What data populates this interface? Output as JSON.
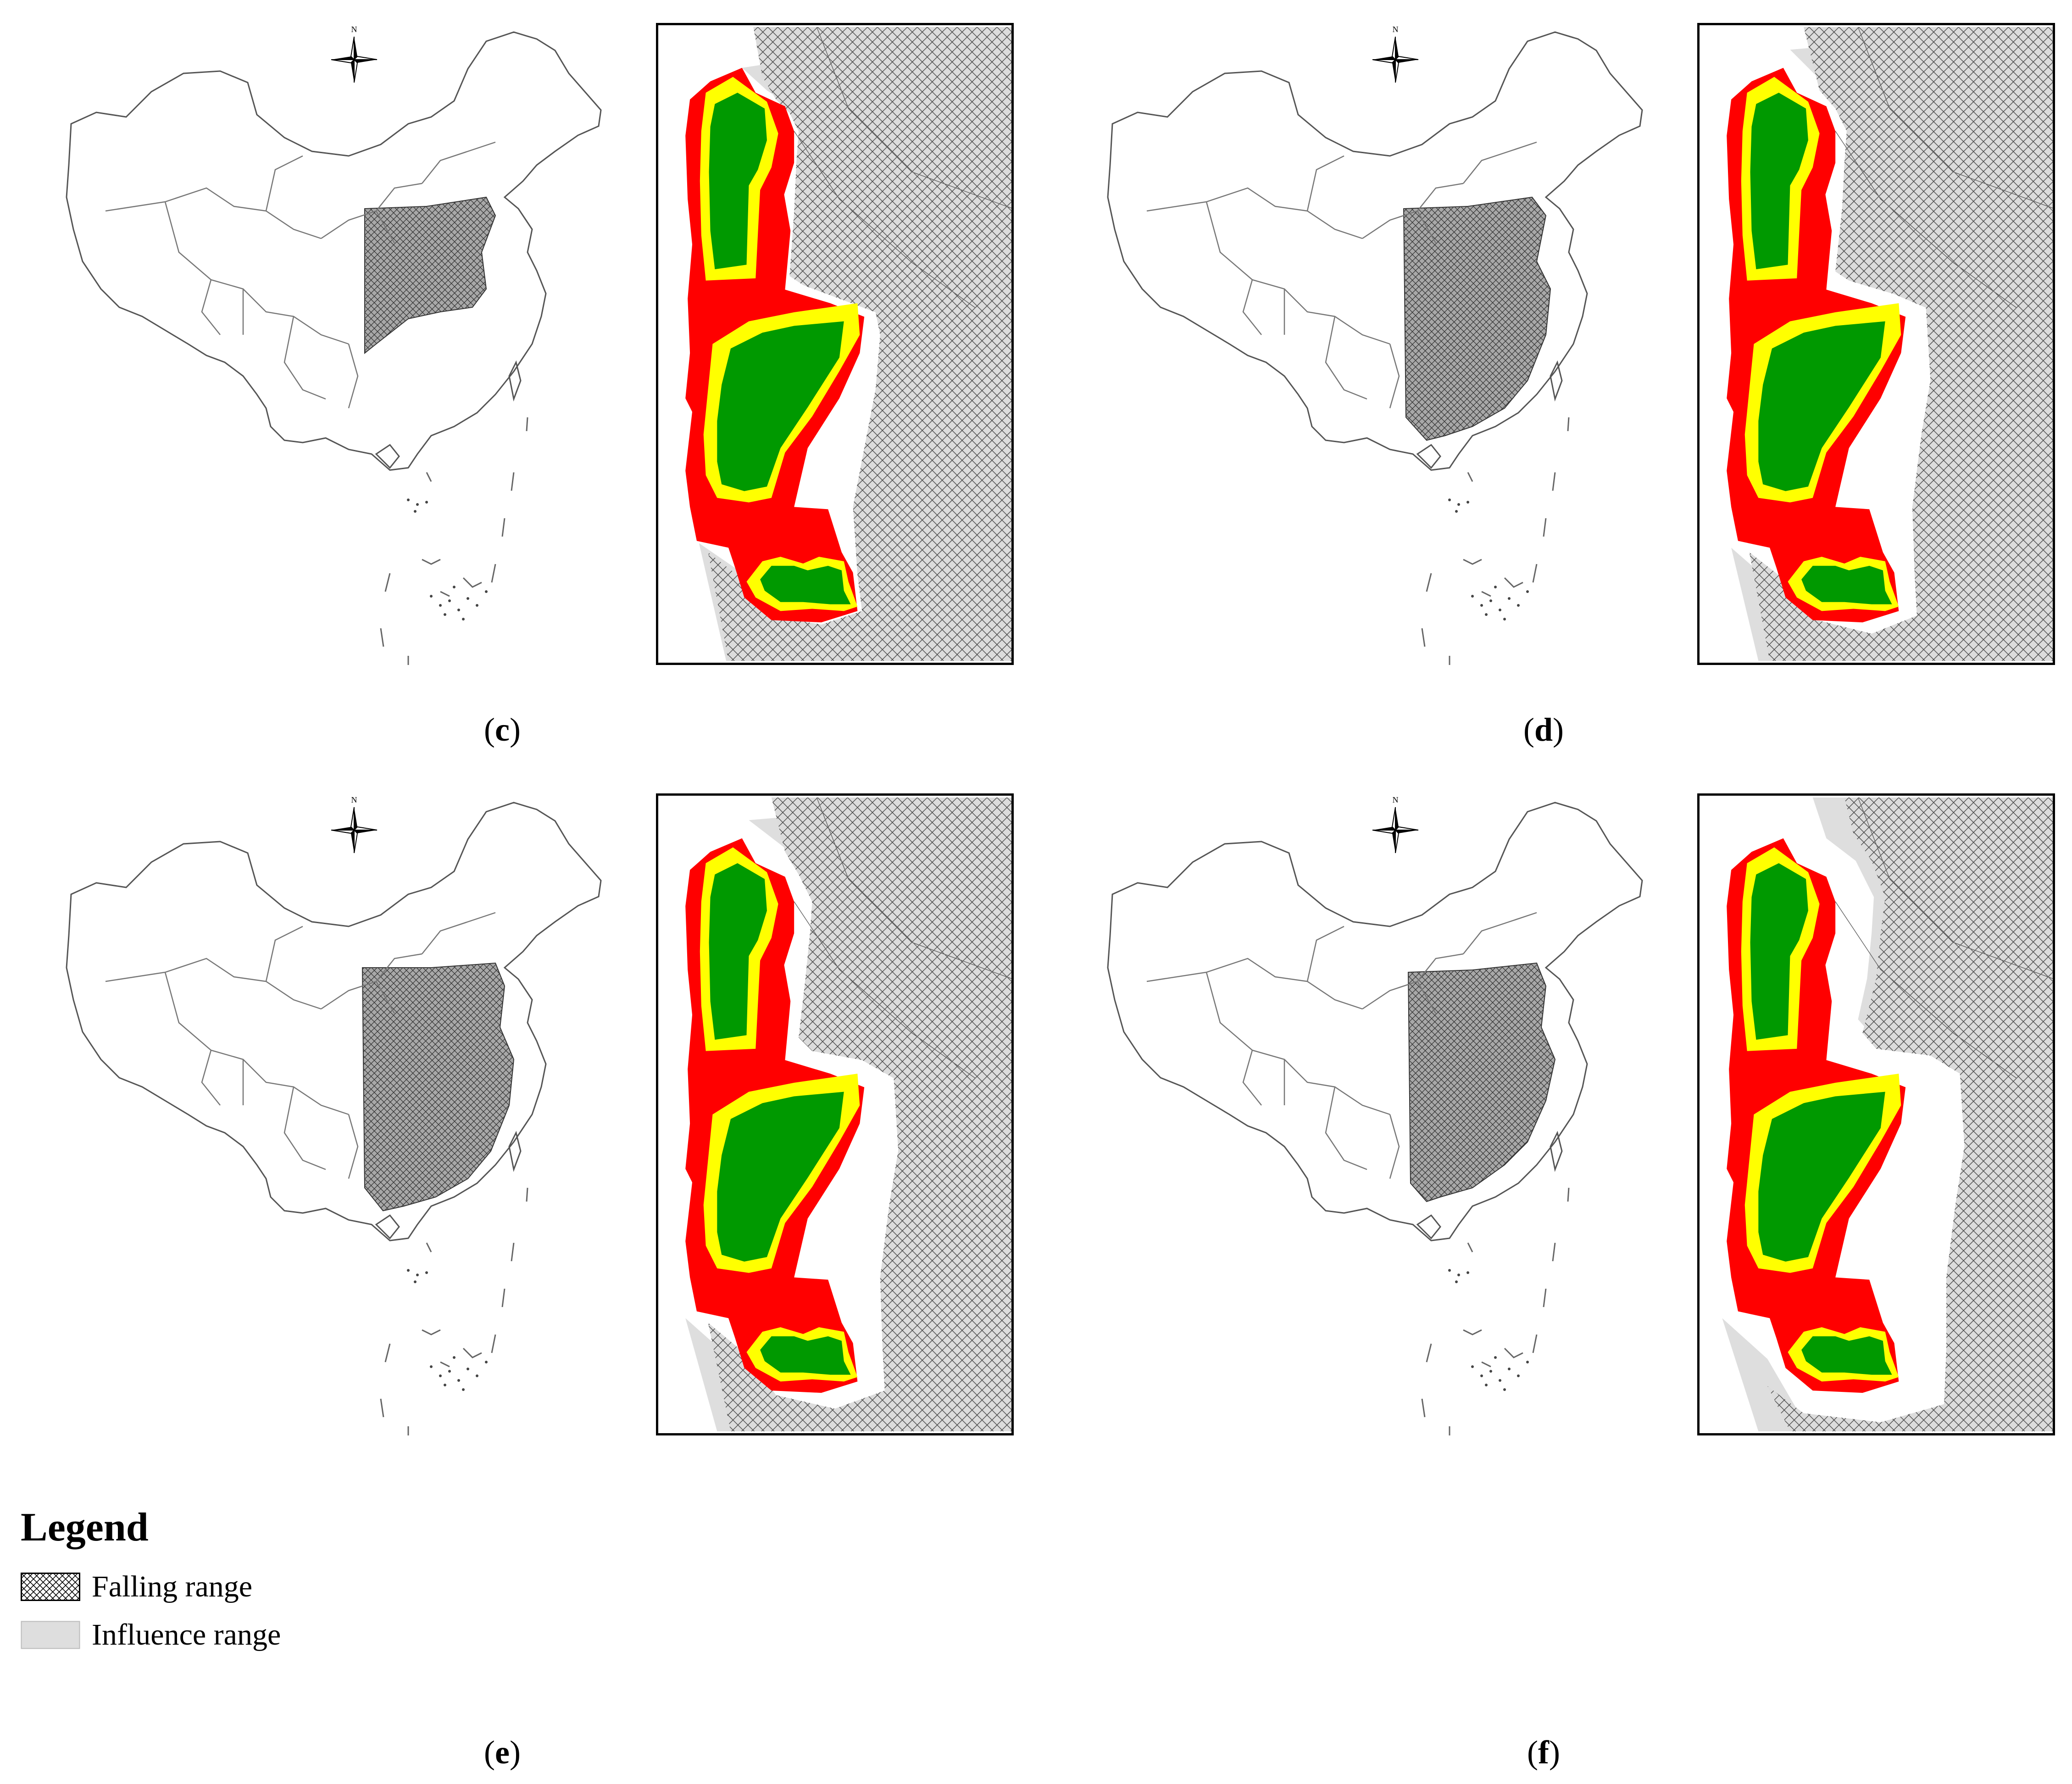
{
  "panels": [
    {
      "id": "c",
      "label": "c"
    },
    {
      "id": "d",
      "label": "d"
    },
    {
      "id": "e",
      "label": "e"
    },
    {
      "id": "f",
      "label": "f"
    }
  ],
  "compass": {
    "north_letter": "N"
  },
  "legend": {
    "title": "Legend",
    "items": [
      {
        "label": "Falling range",
        "symbol": "crosshatch"
      },
      {
        "label": "Influence range",
        "symbol": "light-gray-fill"
      }
    ]
  },
  "zone_colors": {
    "falling_range_fill": "#b0b0b0",
    "influence_range": "#dedede",
    "red_zone": "#ff0000",
    "yellow_zone": "#ffff00",
    "green_zone": "#009900"
  }
}
